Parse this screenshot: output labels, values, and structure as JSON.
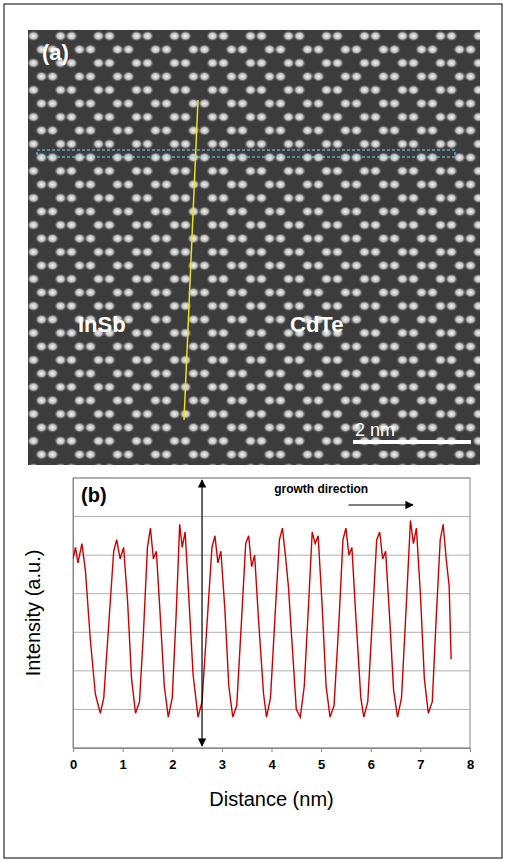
{
  "panel_a": {
    "label": "(a)",
    "regions": [
      "InSb",
      "CdTe"
    ],
    "scale_bar": {
      "label": "2 nm"
    }
  },
  "chart_data": {
    "type": "line",
    "panel": "(b)",
    "x_label": "Distance (nm)",
    "y_label": "Intensity (a.u.)",
    "x": [
      0,
      0.05,
      0.1,
      0.18,
      0.25,
      0.35,
      0.45,
      0.55,
      0.62,
      0.72,
      0.82,
      0.88,
      0.95,
      1.02,
      1.1,
      1.18,
      1.26,
      1.34,
      1.42,
      1.5,
      1.56,
      1.62,
      1.68,
      1.75,
      1.84,
      1.92,
      2,
      2.08,
      2.15,
      2.2,
      2.26,
      2.33,
      2.42,
      2.52,
      2.6,
      2.7,
      2.8,
      2.86,
      2.92,
      2.98,
      3.06,
      3.14,
      3.22,
      3.3,
      3.4,
      3.48,
      3.54,
      3.6,
      3.66,
      3.74,
      3.84,
      3.9,
      3.98,
      4.07,
      4.16,
      4.22,
      4.28,
      4.34,
      4.42,
      4.5,
      4.58,
      4.66,
      4.75,
      4.82,
      4.88,
      4.94,
      5.02,
      5.1,
      5.18,
      5.26,
      5.36,
      5.44,
      5.5,
      5.56,
      5.62,
      5.7,
      5.8,
      5.86,
      5.94,
      6.04,
      6.12,
      6.18,
      6.24,
      6.3,
      6.38,
      6.46,
      6.54,
      6.62,
      6.72,
      6.8,
      6.86,
      6.92,
      7,
      7.08,
      7.16,
      7.24,
      7.32,
      7.4,
      7.46,
      7.52,
      7.58,
      7.62
    ],
    "values": [
      4.9,
      5.2,
      4.8,
      5.3,
      4.6,
      2.8,
      1.4,
      0.9,
      1.3,
      3.2,
      5.1,
      5.4,
      4.9,
      5.2,
      3.8,
      1.8,
      0.9,
      1.2,
      3,
      5.2,
      5.7,
      4.9,
      5.1,
      3.6,
      1.6,
      0.8,
      1.3,
      3.5,
      5.8,
      5.2,
      5.6,
      4,
      1.9,
      0.8,
      1.2,
      3.2,
      5.2,
      5.5,
      4.8,
      5.1,
      3.6,
      1.6,
      0.8,
      1.1,
      3.4,
      5.3,
      5.5,
      4.7,
      5,
      3.3,
      1.4,
      0.8,
      1.3,
      3.4,
      5.4,
      5.7,
      5,
      4.2,
      2.6,
      1,
      0.8,
      1.6,
      3.8,
      5.6,
      5.3,
      5.5,
      3.7,
      1.6,
      0.8,
      1.1,
      3.3,
      5.4,
      5.7,
      5,
      5.2,
      3.4,
      1.3,
      0.8,
      1.2,
      3.5,
      5.4,
      5.6,
      4.9,
      5.1,
      3.4,
      1.5,
      0.8,
      1.3,
      3.8,
      5.9,
      5.3,
      5.7,
      4,
      1.8,
      0.9,
      1.2,
      3.4,
      5.4,
      5.8,
      4.9,
      4.2,
      2.3
    ],
    "color": "#cc0000",
    "xlim": [
      0,
      8
    ],
    "xticks": [
      0,
      1,
      2,
      3,
      4,
      5,
      6,
      7,
      8
    ],
    "ylim": [
      0,
      7
    ],
    "yticks": [
      0,
      1,
      2,
      3,
      4,
      5,
      6,
      7
    ],
    "grid": true,
    "tick_labels": "x",
    "annotations": [
      {
        "text": "growth direction",
        "x": 5.0,
        "y": 6.62
      }
    ],
    "arrows": [
      {
        "x": [
          5.55,
          6.85
        ],
        "y": [
          6.3,
          6.3
        ]
      },
      {
        "x": [
          2.6,
          2.6
        ],
        "y": [
          0,
          7
        ]
      }
    ]
  }
}
